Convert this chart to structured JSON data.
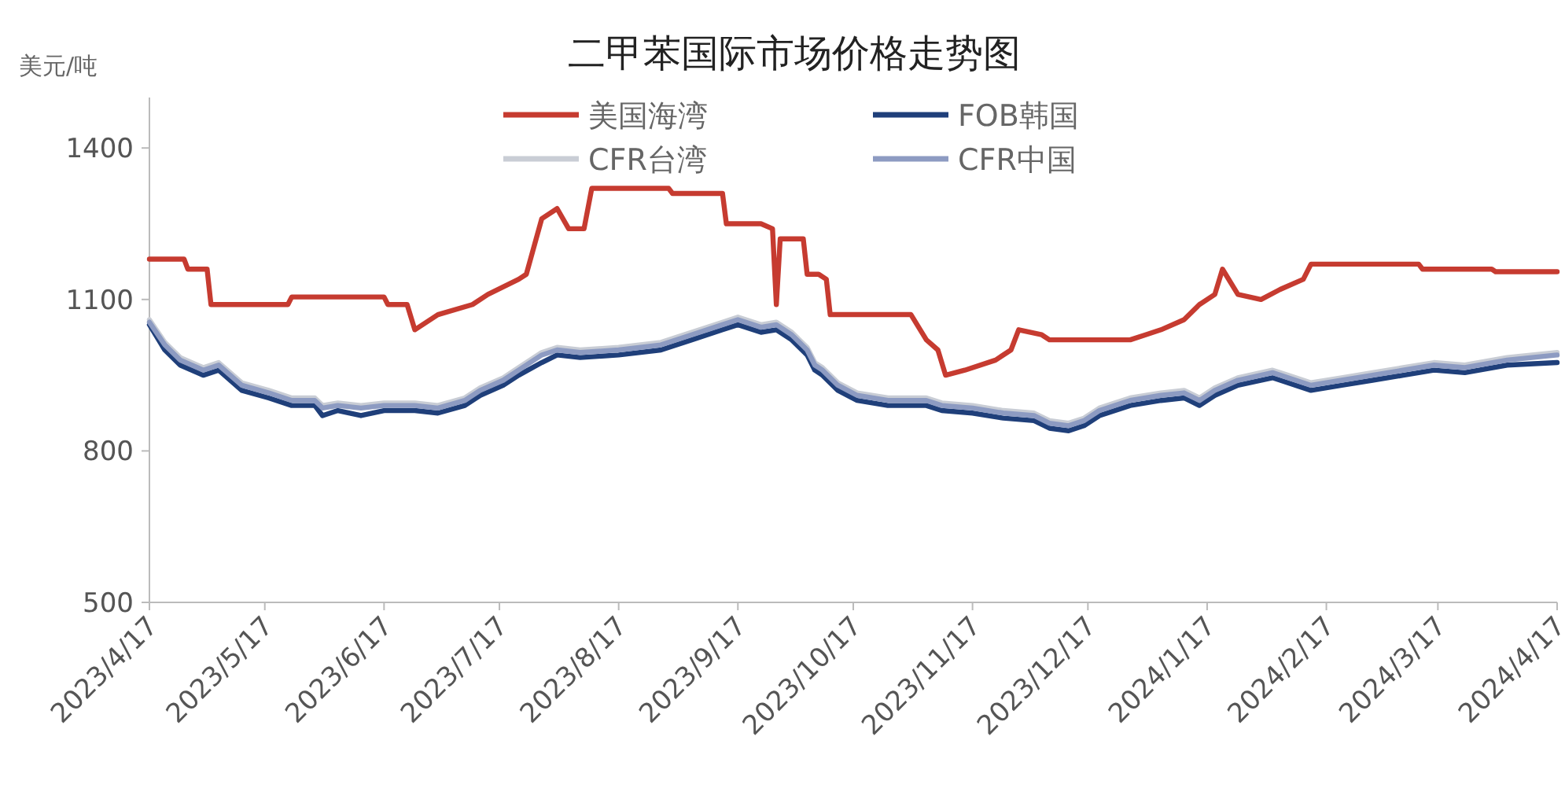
{
  "chart_data": {
    "type": "line",
    "title": "二甲苯国际市场价格走势图",
    "ylabel": "美元/吨",
    "legend": "top",
    "ylim": [
      500,
      1500
    ],
    "yticks": [
      500,
      800,
      1100,
      1400
    ],
    "xlim": [
      "2023-04-17",
      "2024-04-17"
    ],
    "xticks": [
      {
        "value": "2023-04-17",
        "label": "2023/4/17"
      },
      {
        "value": "2023-05-17",
        "label": "2023/5/17"
      },
      {
        "value": "2023-06-17",
        "label": "2023/6/17"
      },
      {
        "value": "2023-07-17",
        "label": "2023/7/17"
      },
      {
        "value": "2023-08-17",
        "label": "2023/8/17"
      },
      {
        "value": "2023-09-17",
        "label": "2023/9/17"
      },
      {
        "value": "2023-10-17",
        "label": "2023/10/17"
      },
      {
        "value": "2023-11-17",
        "label": "2023/11/17"
      },
      {
        "value": "2023-12-17",
        "label": "2023/12/17"
      },
      {
        "value": "2024-01-17",
        "label": "2024/1/17"
      },
      {
        "value": "2024-02-17",
        "label": "2024/2/17"
      },
      {
        "value": "2024-03-17",
        "label": "2024/3/17"
      },
      {
        "value": "2024-04-17",
        "label": "2024/4/17"
      }
    ],
    "x": [
      "2023-04-17",
      "2023-04-21",
      "2023-04-25",
      "2023-05-01",
      "2023-05-05",
      "2023-05-11",
      "2023-05-18",
      "2023-05-24",
      "2023-05-30",
      "2023-06-01",
      "2023-06-05",
      "2023-06-11",
      "2023-06-17",
      "2023-06-25",
      "2023-07-01",
      "2023-07-08",
      "2023-07-12",
      "2023-07-18",
      "2023-07-22",
      "2023-07-28",
      "2023-08-01",
      "2023-08-07",
      "2023-08-17",
      "2023-08-28",
      "2023-09-05",
      "2023-09-13",
      "2023-09-17",
      "2023-09-23",
      "2023-09-27",
      "2023-10-01",
      "2023-10-05",
      "2023-10-07",
      "2023-10-09",
      "2023-10-13",
      "2023-10-18",
      "2023-10-26",
      "2023-11-05",
      "2023-11-09",
      "2023-11-17",
      "2023-11-25",
      "2023-12-03",
      "2023-12-07",
      "2023-12-12",
      "2023-12-16",
      "2023-12-20",
      "2023-12-28",
      "2024-01-05",
      "2024-01-11",
      "2024-01-15",
      "2024-01-19",
      "2024-01-25",
      "2024-02-03",
      "2024-02-07",
      "2024-02-13",
      "2024-02-21",
      "2024-02-29",
      "2024-03-08",
      "2024-03-16",
      "2024-03-24",
      "2024-04-04",
      "2024-04-17"
    ],
    "series": [
      {
        "name": "美国海湾",
        "color": "#c63b30",
        "x": [
          "2023-04-17",
          "2023-04-26",
          "2023-04-27",
          "2023-05-02",
          "2023-05-03",
          "2023-05-23",
          "2023-05-24",
          "2023-06-17",
          "2023-06-18",
          "2023-06-23",
          "2023-06-25",
          "2023-07-01",
          "2023-07-10",
          "2023-07-14",
          "2023-07-22",
          "2023-07-24",
          "2023-07-28",
          "2023-08-01",
          "2023-08-04",
          "2023-08-08",
          "2023-08-10",
          "2023-08-30",
          "2023-08-31",
          "2023-09-13",
          "2023-09-14",
          "2023-09-23",
          "2023-09-26",
          "2023-09-27",
          "2023-09-28",
          "2023-10-04",
          "2023-10-05",
          "2023-10-08",
          "2023-10-10",
          "2023-10-11",
          "2023-11-01",
          "2023-11-05",
          "2023-11-08",
          "2023-11-10",
          "2023-11-15",
          "2023-11-23",
          "2023-11-27",
          "2023-11-29",
          "2023-12-05",
          "2023-12-07",
          "2023-12-28",
          "2024-01-01",
          "2024-01-05",
          "2024-01-11",
          "2024-01-15",
          "2024-01-19",
          "2024-01-21",
          "2024-01-25",
          "2024-01-31",
          "2024-02-05",
          "2024-02-11",
          "2024-02-13",
          "2024-03-12",
          "2024-03-13",
          "2024-03-31",
          "2024-04-01",
          "2024-04-17"
        ],
        "values": [
          1180,
          1180,
          1160,
          1160,
          1090,
          1090,
          1105,
          1105,
          1090,
          1090,
          1040,
          1070,
          1090,
          1110,
          1140,
          1150,
          1260,
          1280,
          1240,
          1240,
          1320,
          1320,
          1310,
          1310,
          1250,
          1250,
          1240,
          1090,
          1220,
          1220,
          1150,
          1150,
          1140,
          1070,
          1070,
          1020,
          1000,
          950,
          960,
          980,
          1000,
          1040,
          1030,
          1020,
          1020,
          1030,
          1040,
          1060,
          1090,
          1110,
          1160,
          1110,
          1100,
          1120,
          1140,
          1170,
          1170,
          1160,
          1160,
          1155,
          1155
        ]
      },
      {
        "name": "FOB韩国",
        "color": "#1f3f7a",
        "values": [
          1050,
          1000,
          970,
          950,
          960,
          920,
          905,
          890,
          890,
          870,
          880,
          870,
          880,
          880,
          875,
          890,
          910,
          930,
          950,
          975,
          990,
          985,
          990,
          1000,
          1020,
          1040,
          1050,
          1035,
          1040,
          1020,
          990,
          960,
          950,
          920,
          900,
          890,
          890,
          880,
          875,
          865,
          860,
          845,
          840,
          850,
          870,
          890,
          900,
          905,
          890,
          910,
          930,
          945,
          935,
          920,
          930,
          940,
          950,
          960,
          955,
          970,
          975
        ]
      },
      {
        "name": "CFR台湾",
        "color": "#c9cdd5",
        "values": [
          1060,
          1015,
          985,
          965,
          975,
          935,
          920,
          905,
          905,
          890,
          895,
          890,
          895,
          895,
          890,
          905,
          925,
          945,
          965,
          995,
          1005,
          1000,
          1005,
          1015,
          1035,
          1055,
          1065,
          1050,
          1055,
          1035,
          1005,
          975,
          965,
          935,
          915,
          905,
          905,
          895,
          890,
          880,
          875,
          860,
          855,
          865,
          885,
          905,
          915,
          920,
          905,
          925,
          945,
          960,
          950,
          935,
          945,
          955,
          965,
          975,
          970,
          985,
          995
        ]
      },
      {
        "name": "CFR中国",
        "color": "#8d9bc2",
        "values": [
          1055,
          1010,
          980,
          960,
          970,
          930,
          915,
          900,
          900,
          885,
          890,
          885,
          890,
          890,
          885,
          900,
          920,
          940,
          960,
          990,
          1000,
          995,
          1000,
          1010,
          1030,
          1050,
          1060,
          1045,
          1050,
          1030,
          1000,
          970,
          960,
          930,
          910,
          900,
          900,
          890,
          885,
          875,
          870,
          855,
          850,
          860,
          880,
          900,
          910,
          915,
          900,
          920,
          940,
          955,
          945,
          930,
          940,
          950,
          960,
          970,
          965,
          980,
          990
        ]
      }
    ]
  }
}
